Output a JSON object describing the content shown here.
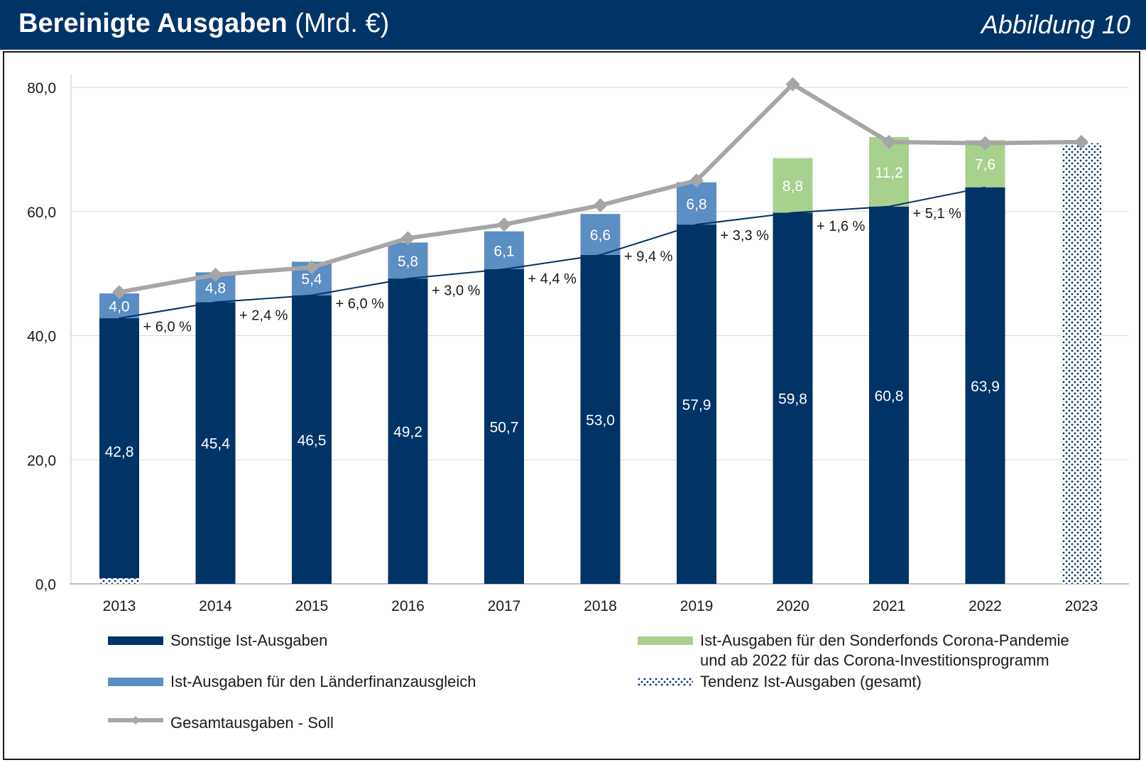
{
  "header": {
    "title_bold": "Bereinigte Ausgaben",
    "title_unit": " (Mrd. €)",
    "figure_label": "Abbildung 10"
  },
  "colors": {
    "header_bg": "#003366",
    "dark_blue": "#003366",
    "light_blue": "#5B8EC2",
    "green": "#A9D18E",
    "gray_line": "#A6A6A6",
    "grid": "#D9D9D9"
  },
  "chart_data": {
    "type": "bar",
    "title": "Bereinigte Ausgaben (Mrd. €)",
    "xlabel": "",
    "ylabel": "",
    "ylim": [
      0,
      80
    ],
    "yticks": [
      "0,0",
      "20,0",
      "40,0",
      "60,0",
      "80,0"
    ],
    "categories": [
      "2013",
      "2014",
      "2015",
      "2016",
      "2017",
      "2018",
      "2019",
      "2020",
      "2021",
      "2022",
      "2023"
    ],
    "series": [
      {
        "name": "Sonstige Ist-Ausgaben",
        "kind": "stacked-bar",
        "values": [
          42.8,
          45.4,
          46.5,
          49.2,
          50.7,
          53.0,
          57.9,
          59.8,
          60.8,
          63.9,
          null
        ],
        "labels": [
          "42,8",
          "45,4",
          "46,5",
          "49,2",
          "50,7",
          "53,0",
          "57,9",
          "59,8",
          "60,8",
          "63,9",
          ""
        ]
      },
      {
        "name": "Ist-Ausgaben für den Länderfinanzausgleich",
        "kind": "stacked-bar",
        "values": [
          4.0,
          4.8,
          5.4,
          5.8,
          6.1,
          6.6,
          6.8,
          null,
          null,
          null,
          null
        ],
        "labels": [
          "4,0",
          "4,8",
          "5,4",
          "5,8",
          "6,1",
          "6,6",
          "6,8",
          "",
          "",
          "",
          ""
        ]
      },
      {
        "name": "Ist-Ausgaben für den Sonderfonds Corona-Pandemie und ab 2022 für das Corona-Investitionsprogramm",
        "kind": "stacked-bar",
        "values": [
          null,
          null,
          null,
          null,
          null,
          null,
          null,
          8.8,
          11.2,
          7.6,
          null
        ],
        "labels": [
          "",
          "",
          "",
          "",
          "",
          "",
          "",
          "8,8",
          "11,2",
          "7,6",
          ""
        ]
      },
      {
        "name": "Tendenz Ist-Ausgaben (gesamt)",
        "kind": "dotted-bar",
        "values": [
          null,
          null,
          null,
          null,
          null,
          null,
          null,
          null,
          null,
          null,
          71.0
        ]
      },
      {
        "name": "Gesamtausgaben - Soll",
        "kind": "line",
        "values": [
          47.0,
          49.8,
          51.0,
          55.7,
          57.9,
          61.0,
          65.0,
          80.5,
          71.2,
          71.0,
          71.2
        ]
      }
    ],
    "growth_annotations": [
      "+ 6,0 %",
      "+ 2,4 %",
      "+ 6,0 %",
      "+ 3,0 %",
      "+ 4,4 %",
      "+ 9,4 %",
      "+ 3,3 %",
      "+ 1,6 %",
      "+ 5,1 %"
    ]
  },
  "legend": [
    {
      "key": "dark",
      "lines": [
        "Sonstige Ist-Ausgaben"
      ]
    },
    {
      "key": "green",
      "lines": [
        "Ist-Ausgaben für den Sonderfonds Corona-Pandemie",
        "und ab 2022 für das Corona-Investitionsprogramm"
      ]
    },
    {
      "key": "light",
      "lines": [
        "Ist-Ausgaben für den Länderfinanzausgleich"
      ]
    },
    {
      "key": "dotted",
      "lines": [
        "Tendenz Ist-Ausgaben (gesamt)"
      ]
    },
    {
      "key": "line",
      "lines": [
        "Gesamtausgaben - Soll"
      ]
    }
  ]
}
